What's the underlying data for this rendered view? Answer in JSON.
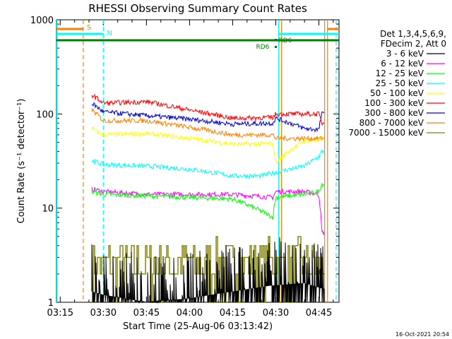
{
  "chart_data": {
    "type": "line",
    "title": "RHESSI Observing Summary Count Rates",
    "xlabel": "Start Time (25-Aug-06 03:13:42)",
    "ylabel": "Count Rate (s⁻¹ detector⁻¹)",
    "yscale": "log",
    "ylim": [
      1,
      1000
    ],
    "xlim": [
      "03:13:42",
      "04:52:00"
    ],
    "x_ticks": [
      "03:15",
      "03:30",
      "03:45",
      "04:00",
      "04:15",
      "04:30",
      "04:45"
    ],
    "y_ticks": [
      "1",
      "10",
      "100",
      "1000"
    ],
    "legend_title": [
      "Det 1,3,4,5,6,9,",
      "FDecim 2, Att 0"
    ],
    "legend_position": "right",
    "series": [
      {
        "name": "3 - 6 keV",
        "color": "#000000",
        "pattern": "spiky",
        "start": "03:26",
        "end": "04:47",
        "x": [
          "03:26",
          "03:30",
          "03:45",
          "04:00",
          "04:15",
          "04:28",
          "04:40",
          "04:46"
        ],
        "y": [
          1.3,
          1.2,
          1.0,
          1.1,
          1.3,
          1.5,
          1.6,
          1.4
        ]
      },
      {
        "name": "6 - 12 keV",
        "color": "#ff00ff",
        "start": "03:26",
        "end": "04:47",
        "x": [
          "03:26",
          "03:30",
          "03:45",
          "04:00",
          "04:15",
          "04:29",
          "04:30",
          "04:40",
          "04:45",
          "04:46"
        ],
        "y": [
          16,
          15,
          14,
          14,
          14,
          13,
          15,
          15,
          14,
          5.5
        ]
      },
      {
        "name": "12 - 25 keV",
        "color": "#00ff00",
        "start": "03:26",
        "end": "04:47",
        "x": [
          "03:26",
          "03:30",
          "03:45",
          "04:00",
          "04:15",
          "04:29",
          "04:30",
          "04:40",
          "04:45",
          "04:46"
        ],
        "y": [
          15,
          14,
          13.5,
          13,
          12.5,
          8,
          13,
          14,
          15,
          18
        ]
      },
      {
        "name": "25 - 50 keV",
        "color": "#00ffff",
        "start": "03:26",
        "end": "04:47",
        "x": [
          "03:26",
          "03:30",
          "03:45",
          "04:00",
          "04:15",
          "04:25",
          "04:30",
          "04:40",
          "04:45",
          "04:46"
        ],
        "y": [
          32,
          29,
          28,
          26,
          22,
          22,
          24,
          28,
          35,
          40
        ]
      },
      {
        "name": "50 - 100 keV",
        "color": "#ffff00",
        "start": "03:26",
        "end": "04:47",
        "x": [
          "03:26",
          "03:30",
          "03:45",
          "04:00",
          "04:15",
          "04:29",
          "04:30",
          "04:40",
          "04:45",
          "04:46"
        ],
        "y": [
          70,
          60,
          62,
          55,
          48,
          48,
          30,
          52,
          52,
          55
        ]
      },
      {
        "name": "100 - 300 keV",
        "color": "#ff0000",
        "start": "03:26",
        "end": "04:47",
        "x": [
          "03:26",
          "03:30",
          "03:45",
          "04:00",
          "04:15",
          "04:29",
          "04:30",
          "04:40",
          "04:45",
          "04:46"
        ],
        "y": [
          160,
          130,
          135,
          110,
          90,
          92,
          100,
          100,
          100,
          80
        ]
      },
      {
        "name": "300 - 800 keV",
        "color": "#0000cc",
        "start": "03:26",
        "end": "04:47",
        "x": [
          "03:26",
          "03:30",
          "03:45",
          "04:00",
          "04:15",
          "04:29",
          "04:30",
          "04:40",
          "04:45",
          "04:46"
        ],
        "y": [
          130,
          105,
          96,
          88,
          78,
          80,
          90,
          70,
          68,
          100
        ]
      },
      {
        "name": "800 - 7000 keV",
        "color": "#ff8000",
        "start": "03:26",
        "end": "04:47",
        "x": [
          "03:26",
          "03:30",
          "03:45",
          "04:00",
          "04:15",
          "04:29",
          "04:30",
          "04:40",
          "04:45",
          "04:46"
        ],
        "y": [
          110,
          85,
          85,
          72,
          60,
          60,
          55,
          55,
          55,
          55
        ]
      },
      {
        "name": "7000 - 15000 keV",
        "color": "#808000",
        "pattern": "blocky",
        "start": "03:26",
        "end": "04:47",
        "x": [
          "03:26",
          "03:30",
          "03:45",
          "04:00",
          "04:15",
          "04:28",
          "04:40",
          "04:46"
        ],
        "y": [
          2.5,
          2.5,
          2.5,
          2.6,
          2.4,
          2.7,
          2.6,
          2.5
        ]
      }
    ],
    "annotations": [
      {
        "label": "S",
        "color": "#ff8000",
        "style": "dashed-vertical",
        "x": "03:23"
      },
      {
        "label": "N",
        "color": "#00ffff",
        "style": "dashed-vertical",
        "x": "03:30"
      },
      {
        "label": "RD6",
        "color": "#008000",
        "marker_x": "04:30"
      },
      {
        "label": "RD6",
        "color": "#008000",
        "marker_x": "04:30"
      }
    ],
    "timestamp": "16-Oct-2021 20:54"
  }
}
